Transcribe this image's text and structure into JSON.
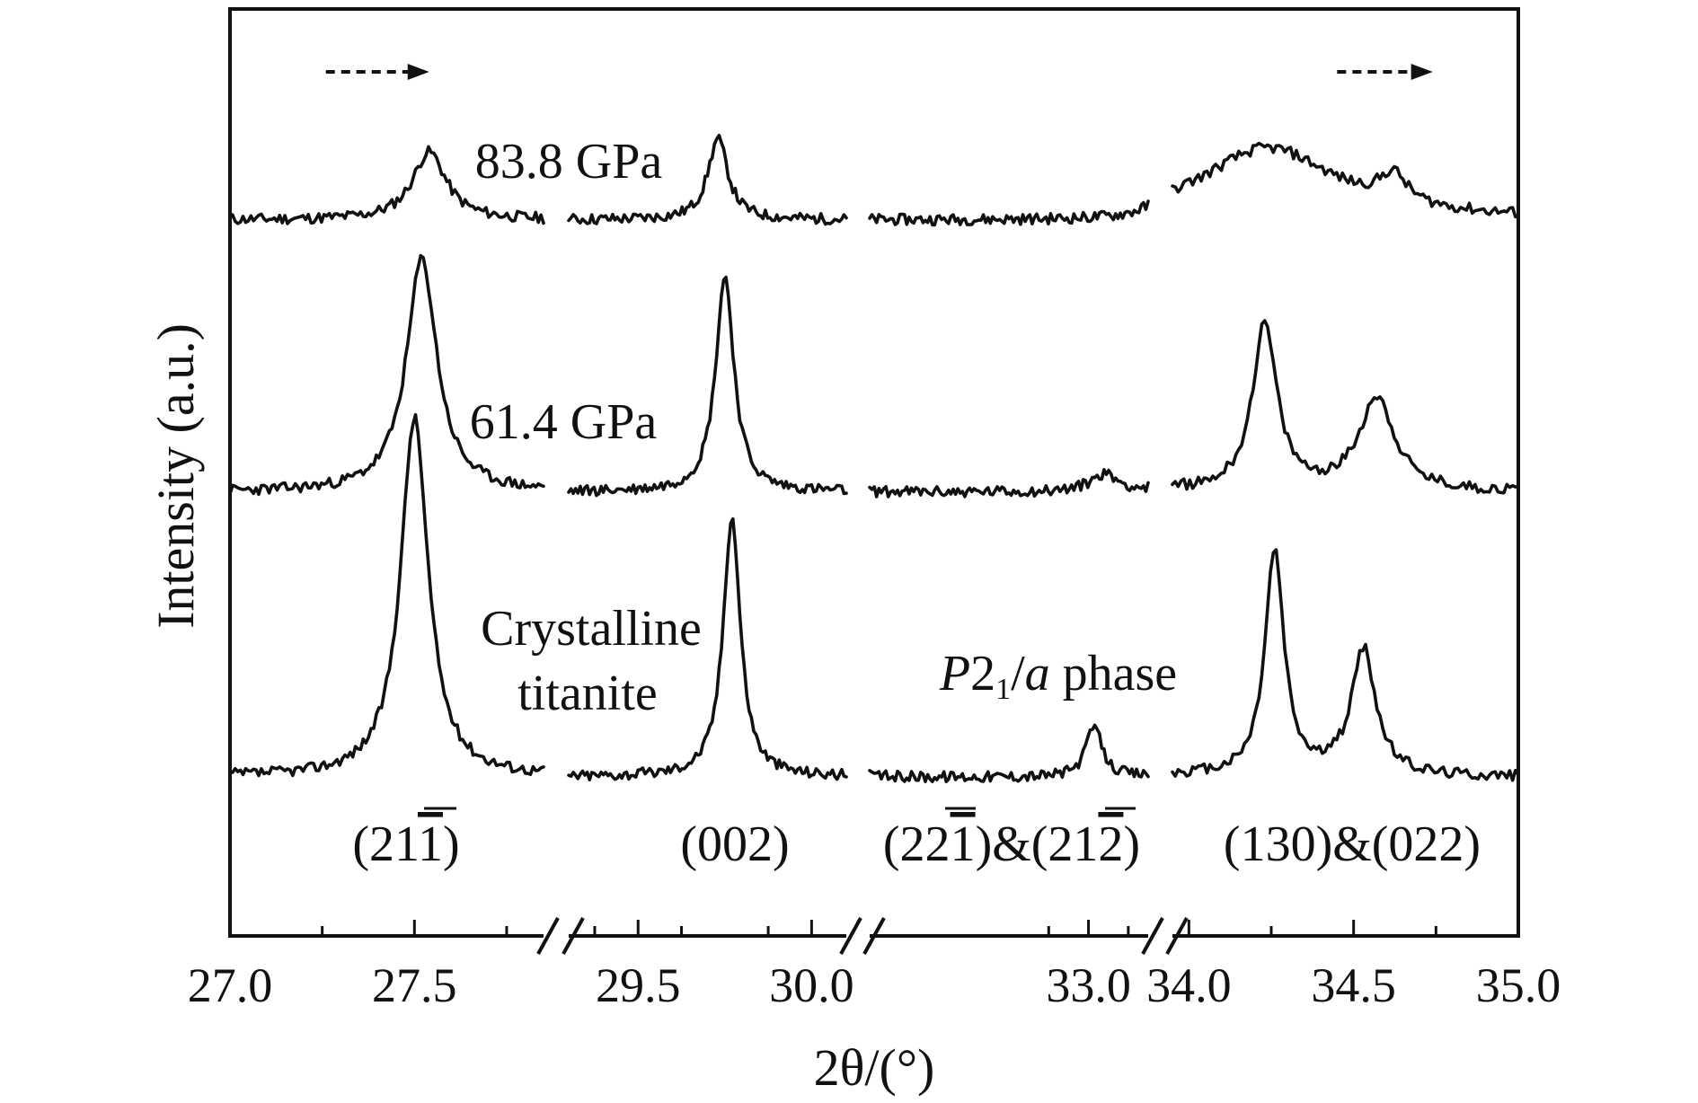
{
  "chart_data": {
    "type": "line",
    "title": "",
    "xlabel": "2θ/(°)",
    "ylabel": "Intensity (a.u.)",
    "x_axis_breaks": true,
    "x_segments": [
      {
        "range": [
          27.0,
          27.85
        ]
      },
      {
        "range": [
          29.3,
          30.1
        ]
      },
      {
        "range": [
          30.25,
          33.75
        ]
      },
      {
        "range": [
          33.95,
          35.0
        ]
      }
    ],
    "x_ticks": [
      "27.0",
      "27.5",
      "29.5",
      "30.0",
      "33.0",
      "34.0",
      "34.5",
      "35.0"
    ],
    "y_ticks": false,
    "grid": false,
    "series": [
      {
        "name": "83.8 GPa",
        "peaks": [
          {
            "x": 27.54,
            "rel_height": 0.38
          },
          {
            "x": 29.73,
            "rel_height": 0.45
          },
          {
            "x": 34.24,
            "rel_height": 0.4
          },
          {
            "x": 34.62,
            "rel_height": 0.16
          }
        ]
      },
      {
        "name": "61.4 GPa",
        "peaks": [
          {
            "x": 27.52,
            "rel_height": 1.3
          },
          {
            "x": 29.75,
            "rel_height": 1.2
          },
          {
            "x": 33.2,
            "rel_height": 0.1
          },
          {
            "x": 34.23,
            "rel_height": 0.92
          },
          {
            "x": 34.57,
            "rel_height": 0.52
          }
        ]
      },
      {
        "name": "Crystalline titanite",
        "peaks": [
          {
            "x": 27.5,
            "rel_height": 2.0
          },
          {
            "x": 29.77,
            "rel_height": 1.45
          },
          {
            "x": 33.07,
            "rel_height": 0.28
          },
          {
            "x": 34.26,
            "rel_height": 1.25
          },
          {
            "x": 34.53,
            "rel_height": 0.7
          }
        ]
      }
    ],
    "annotations": {
      "series_labels": [
        "83.8 GPa",
        "61.4 GPa",
        "Crystalline",
        "titanite"
      ],
      "phase_label": {
        "italic": "P",
        "base": "2",
        "subscript": "1",
        "slash": "/",
        "italic2": "a",
        "rest": " phase"
      },
      "peak_labels": [
        {
          "prefix": "(21",
          "overbar": "1",
          "suffix": ")"
        },
        {
          "prefix": "(002)",
          "overbar": "",
          "suffix": ""
        },
        {
          "prefix": "(22",
          "overbar": "1",
          "middle": ")&(21",
          "overbar2": "2",
          "suffix": ")"
        },
        {
          "prefix": "(130)&(022)",
          "overbar": "",
          "suffix": ""
        }
      ],
      "arrows": [
        {
          "x_from": 27.26,
          "x_to": 27.54
        },
        {
          "x_from": 34.45,
          "x_to": 34.74
        }
      ]
    }
  }
}
